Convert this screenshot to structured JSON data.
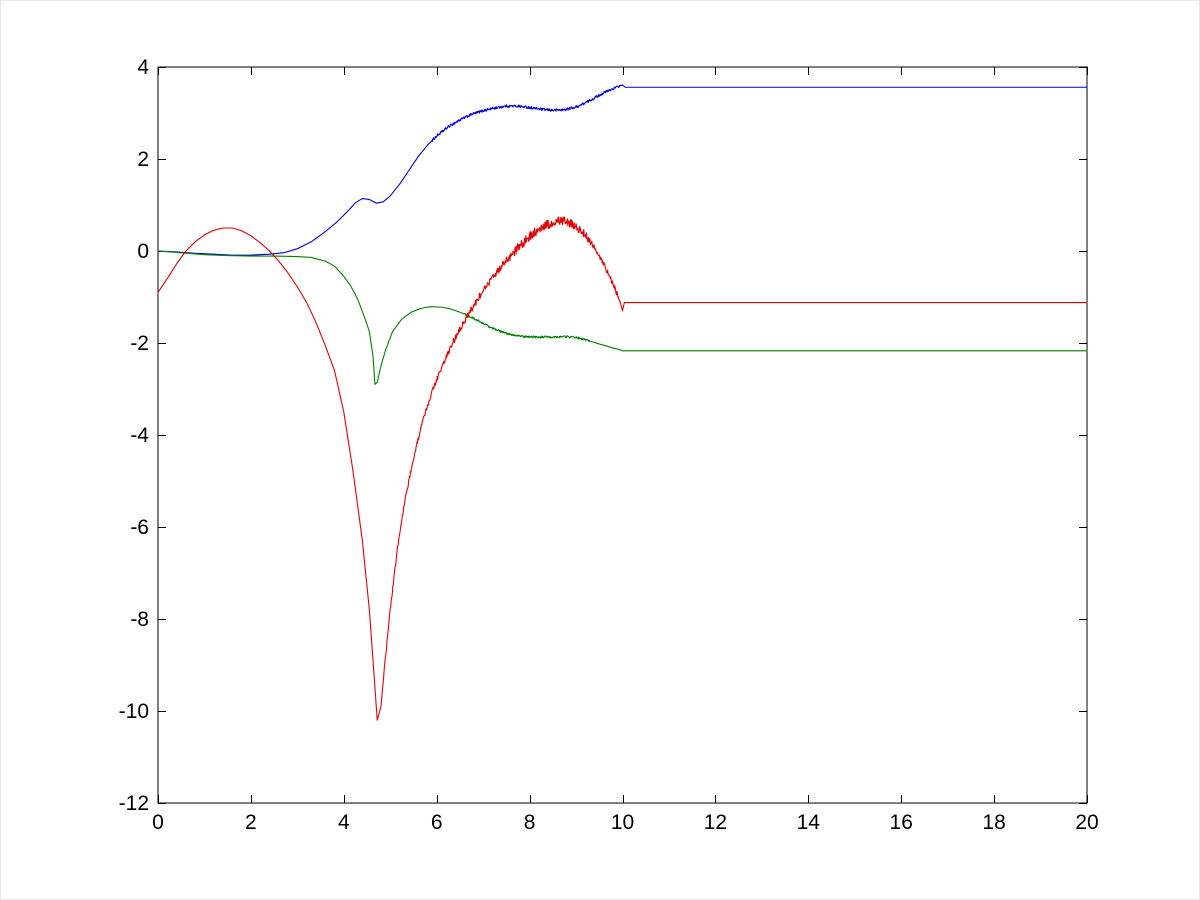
{
  "figure": {
    "background": "#ffffff",
    "axis_color": "#000000",
    "tick_length": 8
  },
  "chart_data": {
    "type": "line",
    "title": "",
    "xlabel": "",
    "ylabel": "",
    "xlim": [
      0,
      20
    ],
    "ylim": [
      -12,
      4
    ],
    "grid": false,
    "legend": null,
    "xticks": [
      0,
      2,
      4,
      6,
      8,
      10,
      12,
      14,
      16,
      18,
      20
    ],
    "xtick_labels": [
      "0",
      "2",
      "4",
      "6",
      "8",
      "10",
      "12",
      "14",
      "16",
      "18",
      "20"
    ],
    "yticks": [
      -12,
      -10,
      -8,
      -6,
      -4,
      -2,
      0,
      2,
      4
    ],
    "ytick_labels": [
      "-12",
      "-10",
      "-8",
      "-6",
      "-4",
      "-2",
      "0",
      "2",
      "4"
    ],
    "series": [
      {
        "name": "blue-line",
        "color": "#0000d9",
        "points": [
          [
            0,
            0
          ],
          [
            0.4,
            -0.02
          ],
          [
            0.8,
            -0.05
          ],
          [
            1.2,
            -0.07
          ],
          [
            1.6,
            -0.09
          ],
          [
            2.0,
            -0.09
          ],
          [
            2.4,
            -0.07
          ],
          [
            2.7,
            -0.04
          ],
          [
            3.0,
            0.05
          ],
          [
            3.3,
            0.2
          ],
          [
            3.6,
            0.42
          ],
          [
            3.85,
            0.63
          ],
          [
            4.1,
            0.88
          ],
          [
            4.25,
            1.05
          ],
          [
            4.4,
            1.14
          ],
          [
            4.55,
            1.12
          ],
          [
            4.7,
            1.04
          ],
          [
            4.85,
            1.07
          ],
          [
            5.0,
            1.2
          ],
          [
            5.2,
            1.45
          ],
          [
            5.4,
            1.75
          ],
          [
            5.6,
            2.05
          ],
          [
            5.8,
            2.3
          ],
          [
            6.0,
            2.5
          ],
          [
            6.25,
            2.7
          ],
          [
            6.5,
            2.85
          ],
          [
            6.75,
            2.97
          ],
          [
            7.0,
            3.05
          ],
          [
            7.25,
            3.11
          ],
          [
            7.5,
            3.15
          ],
          [
            7.75,
            3.15
          ],
          [
            8.0,
            3.12
          ],
          [
            8.25,
            3.08
          ],
          [
            8.5,
            3.06
          ],
          [
            8.75,
            3.07
          ],
          [
            9.0,
            3.13
          ],
          [
            9.2,
            3.22
          ],
          [
            9.4,
            3.33
          ],
          [
            9.6,
            3.44
          ],
          [
            9.8,
            3.53
          ],
          [
            9.95,
            3.59
          ],
          [
            10.0,
            3.61
          ],
          [
            10.06,
            3.56
          ],
          [
            20,
            3.56
          ]
        ],
        "noise": [
          {
            "from": 5.9,
            "to": 9.95,
            "amp": 0.028
          }
        ]
      },
      {
        "name": "green-line",
        "color": "#008000",
        "points": [
          [
            0,
            0
          ],
          [
            0.5,
            -0.04
          ],
          [
            1.0,
            -0.08
          ],
          [
            1.5,
            -0.1
          ],
          [
            2.0,
            -0.11
          ],
          [
            2.5,
            -0.11
          ],
          [
            3.0,
            -0.12
          ],
          [
            3.3,
            -0.14
          ],
          [
            3.6,
            -0.22
          ],
          [
            3.8,
            -0.33
          ],
          [
            4.0,
            -0.55
          ],
          [
            4.15,
            -0.76
          ],
          [
            4.3,
            -1.05
          ],
          [
            4.45,
            -1.45
          ],
          [
            4.55,
            -1.75
          ],
          [
            4.63,
            -2.3
          ],
          [
            4.67,
            -2.9
          ],
          [
            4.72,
            -2.85
          ],
          [
            4.8,
            -2.5
          ],
          [
            4.9,
            -2.15
          ],
          [
            5.05,
            -1.75
          ],
          [
            5.25,
            -1.48
          ],
          [
            5.45,
            -1.33
          ],
          [
            5.65,
            -1.25
          ],
          [
            5.85,
            -1.21
          ],
          [
            6.1,
            -1.22
          ],
          [
            6.3,
            -1.26
          ],
          [
            6.5,
            -1.33
          ],
          [
            6.7,
            -1.42
          ],
          [
            6.9,
            -1.52
          ],
          [
            7.1,
            -1.63
          ],
          [
            7.3,
            -1.72
          ],
          [
            7.5,
            -1.79
          ],
          [
            7.7,
            -1.84
          ],
          [
            7.9,
            -1.86
          ],
          [
            8.2,
            -1.87
          ],
          [
            8.5,
            -1.87
          ],
          [
            8.8,
            -1.86
          ],
          [
            9.0,
            -1.88
          ],
          [
            9.2,
            -1.93
          ],
          [
            9.4,
            -1.99
          ],
          [
            9.6,
            -2.05
          ],
          [
            9.8,
            -2.11
          ],
          [
            9.95,
            -2.15
          ],
          [
            10.0,
            -2.17
          ],
          [
            20,
            -2.17
          ]
        ],
        "noise": [
          {
            "from": 6.6,
            "to": 9.3,
            "amp": 0.022
          }
        ]
      },
      {
        "name": "red-line",
        "color": "#e60000",
        "points": [
          [
            0,
            -0.9
          ],
          [
            0.2,
            -0.6
          ],
          [
            0.4,
            -0.28
          ],
          [
            0.6,
            0.0
          ],
          [
            0.8,
            0.2
          ],
          [
            1.0,
            0.35
          ],
          [
            1.2,
            0.45
          ],
          [
            1.4,
            0.5
          ],
          [
            1.6,
            0.5
          ],
          [
            1.8,
            0.44
          ],
          [
            2.0,
            0.33
          ],
          [
            2.2,
            0.18
          ],
          [
            2.4,
            0.0
          ],
          [
            2.6,
            -0.22
          ],
          [
            2.8,
            -0.48
          ],
          [
            3.0,
            -0.78
          ],
          [
            3.2,
            -1.12
          ],
          [
            3.4,
            -1.55
          ],
          [
            3.6,
            -2.05
          ],
          [
            3.8,
            -2.6
          ],
          [
            4.0,
            -3.5
          ],
          [
            4.2,
            -4.8
          ],
          [
            4.4,
            -6.3
          ],
          [
            4.55,
            -7.8
          ],
          [
            4.65,
            -9.2
          ],
          [
            4.72,
            -10.2
          ],
          [
            4.8,
            -9.9
          ],
          [
            4.9,
            -8.8
          ],
          [
            5.0,
            -7.8
          ],
          [
            5.15,
            -6.5
          ],
          [
            5.3,
            -5.5
          ],
          [
            5.5,
            -4.5
          ],
          [
            5.7,
            -3.7
          ],
          [
            5.9,
            -3.05
          ],
          [
            6.1,
            -2.55
          ],
          [
            6.3,
            -2.1
          ],
          [
            6.5,
            -1.7
          ],
          [
            6.7,
            -1.35
          ],
          [
            6.9,
            -1.02
          ],
          [
            7.1,
            -0.72
          ],
          [
            7.3,
            -0.45
          ],
          [
            7.5,
            -0.2
          ],
          [
            7.7,
            0.02
          ],
          [
            7.9,
            0.22
          ],
          [
            8.1,
            0.4
          ],
          [
            8.3,
            0.53
          ],
          [
            8.5,
            0.62
          ],
          [
            8.7,
            0.66
          ],
          [
            8.9,
            0.6
          ],
          [
            9.1,
            0.45
          ],
          [
            9.3,
            0.22
          ],
          [
            9.5,
            -0.1
          ],
          [
            9.7,
            -0.5
          ],
          [
            9.85,
            -0.85
          ],
          [
            9.97,
            -1.18
          ],
          [
            10.0,
            -1.3
          ],
          [
            10.04,
            -1.12
          ],
          [
            20,
            -1.12
          ]
        ],
        "noise": [
          {
            "from": 4.85,
            "to": 6.2,
            "amp": 0.05
          },
          {
            "from": 6.2,
            "to": 7.5,
            "amp": 0.07
          },
          {
            "from": 7.5,
            "to": 9.35,
            "amp": 0.1
          },
          {
            "from": 9.35,
            "to": 9.95,
            "amp": 0.055
          }
        ]
      }
    ]
  }
}
